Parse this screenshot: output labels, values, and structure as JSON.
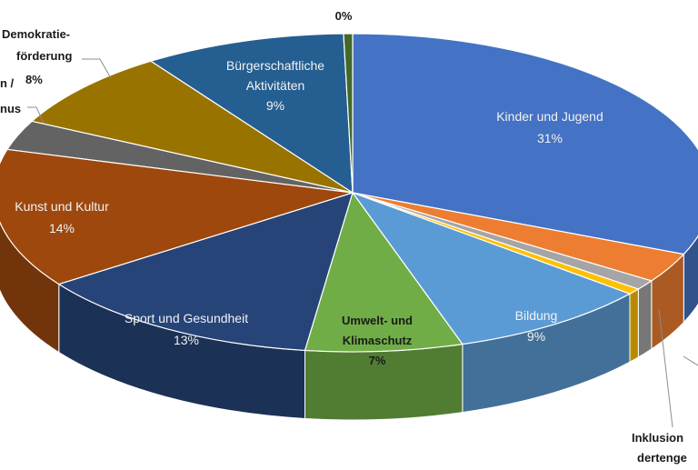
{
  "chart_data": {
    "type": "pie",
    "style": "3d-pie",
    "unit": "%",
    "slices": [
      {
        "label": "Kinder und Jugend",
        "value": 31,
        "value_text": "31%",
        "color": "#4472c4"
      },
      {
        "label": "",
        "value": 3,
        "value_text": "",
        "color": "#ed7d31"
      },
      {
        "label": "",
        "value": 1,
        "value_text": "",
        "color": "#a5a5a5"
      },
      {
        "label": "",
        "value": 0.6,
        "value_text": "",
        "color": "#ffc000"
      },
      {
        "label": "Bildung",
        "value": 9,
        "value_text": "9%",
        "color": "#5b9bd5"
      },
      {
        "label": "Umwelt- und Klimaschutz",
        "value": 7,
        "value_text": "7%",
        "color": "#70ad47"
      },
      {
        "label": "Sport und Gesundheit",
        "value": 13,
        "value_text": "13%",
        "color": "#264478"
      },
      {
        "label": "Kunst und Kultur",
        "value": 14,
        "value_text": "14%",
        "color": "#9e480e"
      },
      {
        "label": "",
        "value": 3,
        "value_text": "",
        "color": "#636363"
      },
      {
        "label": "Demokratie-förderung",
        "value": 8,
        "value_text": "8%",
        "color": "#997300"
      },
      {
        "label": "Bürgerschaftliche Aktivitäten",
        "value": 9,
        "value_text": "9%",
        "color": "#255e91"
      },
      {
        "label": "",
        "value": 0.4,
        "value_text": "0%",
        "color": "#43682b"
      }
    ],
    "partial_labels": [
      {
        "text": "Inklusion"
      },
      {
        "text": "dertenge"
      },
      {
        "text": "n /"
      },
      {
        "text": "nus"
      }
    ]
  }
}
